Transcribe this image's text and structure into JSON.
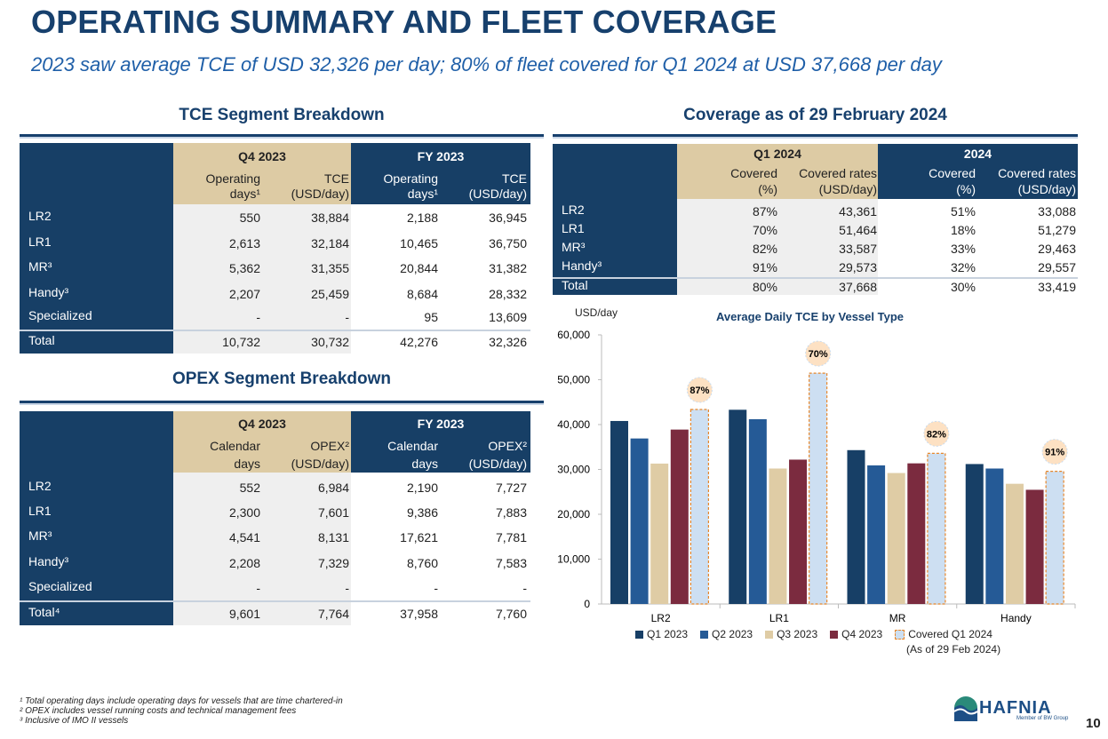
{
  "header": {
    "title": "OPERATING SUMMARY AND FLEET COVERAGE",
    "subtitle": "2023 saw average TCE of USD 32,326 per day; 80% of fleet covered for Q1 2024 at USD 37,668 per day"
  },
  "tce": {
    "title": "TCE Segment Breakdown",
    "groups": [
      {
        "label": "Q4 2023",
        "cols": [
          {
            "l1": "Operating",
            "l2": "days¹"
          },
          {
            "l1": "TCE",
            "l2": "(USD/day)"
          }
        ]
      },
      {
        "label": "FY 2023",
        "cols": [
          {
            "l1": "Operating",
            "l2": "days¹"
          },
          {
            "l1": "TCE",
            "l2": "(USD/day)"
          }
        ]
      }
    ],
    "rows": [
      {
        "label": "LR2",
        "values": [
          "550",
          "38,884",
          "2,188",
          "36,945"
        ]
      },
      {
        "label": "LR1",
        "values": [
          "2,613",
          "32,184",
          "10,465",
          "36,750"
        ]
      },
      {
        "label": "MR³",
        "values": [
          "5,362",
          "31,355",
          "20,844",
          "31,382"
        ]
      },
      {
        "label": "Handy³",
        "values": [
          "2,207",
          "25,459",
          "8,684",
          "28,332"
        ]
      },
      {
        "label": "Specialized",
        "values": [
          "-",
          "-",
          "95",
          "13,609"
        ]
      }
    ],
    "total": {
      "label": "Total",
      "values": [
        "10,732",
        "30,732",
        "42,276",
        "32,326"
      ]
    }
  },
  "opex": {
    "title": "OPEX Segment Breakdown",
    "groups": [
      {
        "label": "Q4 2023",
        "cols": [
          {
            "l1": "Calendar",
            "l2": "days"
          },
          {
            "l1": "OPEX²",
            "l2": "(USD/day)"
          }
        ]
      },
      {
        "label": "FY 2023",
        "cols": [
          {
            "l1": "Calendar",
            "l2": "days"
          },
          {
            "l1": "OPEX²",
            "l2": "(USD/day)"
          }
        ]
      }
    ],
    "rows": [
      {
        "label": "LR2",
        "values": [
          "552",
          "6,984",
          "2,190",
          "7,727"
        ]
      },
      {
        "label": "LR1",
        "values": [
          "2,300",
          "7,601",
          "9,386",
          "7,883"
        ]
      },
      {
        "label": "MR³",
        "values": [
          "4,541",
          "8,131",
          "17,621",
          "7,781"
        ]
      },
      {
        "label": "Handy³",
        "values": [
          "2,208",
          "7,329",
          "8,760",
          "7,583"
        ]
      },
      {
        "label": "Specialized",
        "values": [
          "-",
          "-",
          "-",
          "-"
        ]
      }
    ],
    "total": {
      "label": "Total⁴",
      "values": [
        "9,601",
        "7,764",
        "37,958",
        "7,760"
      ]
    }
  },
  "coverage": {
    "title": "Coverage as of 29 February 2024",
    "groups": [
      {
        "label": "Q1 2024",
        "cols": [
          {
            "l1": "Covered",
            "l2": "(%)"
          },
          {
            "l1": "Covered rates",
            "l2": "(USD/day)"
          }
        ]
      },
      {
        "label": "2024",
        "cols": [
          {
            "l1": "Covered",
            "l2": "(%)"
          },
          {
            "l1": "Covered rates",
            "l2": "(USD/day)"
          }
        ]
      }
    ],
    "rows": [
      {
        "label": "LR2",
        "values": [
          "87%",
          "43,361",
          "51%",
          "33,088"
        ]
      },
      {
        "label": "LR1",
        "values": [
          "70%",
          "51,464",
          "18%",
          "51,279"
        ]
      },
      {
        "label": "MR³",
        "values": [
          "82%",
          "33,587",
          "33%",
          "29,463"
        ]
      },
      {
        "label": "Handy³",
        "values": [
          "91%",
          "29,573",
          "32%",
          "29,557"
        ]
      }
    ],
    "total": {
      "label": "Total",
      "values": [
        "80%",
        "37,668",
        "30%",
        "33,419"
      ]
    }
  },
  "chart_data": {
    "type": "bar",
    "title": "Average Daily TCE by Vessel Type",
    "ylabel": "USD/day",
    "xlabel": "",
    "ylim": [
      0,
      60000
    ],
    "yticks": [
      "0",
      "10,000",
      "20,000",
      "30,000",
      "40,000",
      "50,000",
      "60,000"
    ],
    "categories": [
      "LR2",
      "LR1",
      "MR",
      "Handy"
    ],
    "series": [
      {
        "name": "Q1 2023",
        "color": "#173f66",
        "values": [
          40800,
          43300,
          34300,
          31200
        ]
      },
      {
        "name": "Q2 2023",
        "color": "#255a96",
        "values": [
          36900,
          41200,
          30900,
          30200
        ]
      },
      {
        "name": "Q3 2023",
        "color": "#dfcca5",
        "values": [
          31300,
          30200,
          29200,
          26800
        ]
      },
      {
        "name": "Q4 2023",
        "color": "#7b2b3f",
        "values": [
          38884,
          32184,
          31355,
          25459
        ]
      },
      {
        "name": "Covered Q1 2024",
        "name_line2": "(As of 29 Feb 2024)",
        "color": "#cddff2",
        "border": "#e8872a",
        "values": [
          43361,
          51464,
          33587,
          29573
        ]
      }
    ],
    "annotations": [
      "87%",
      "70%",
      "82%",
      "91%"
    ],
    "grid": false,
    "legend": "bottom"
  },
  "footnotes": [
    "¹ Total operating days include operating days for vessels that are time chartered-in",
    "² OPEX includes vessel running costs and technical management fees",
    "³ Inclusive of IMO II vessels"
  ],
  "logo": {
    "name": "HAFNIA",
    "tagline": "Member of BW Group"
  },
  "page_number": "10"
}
